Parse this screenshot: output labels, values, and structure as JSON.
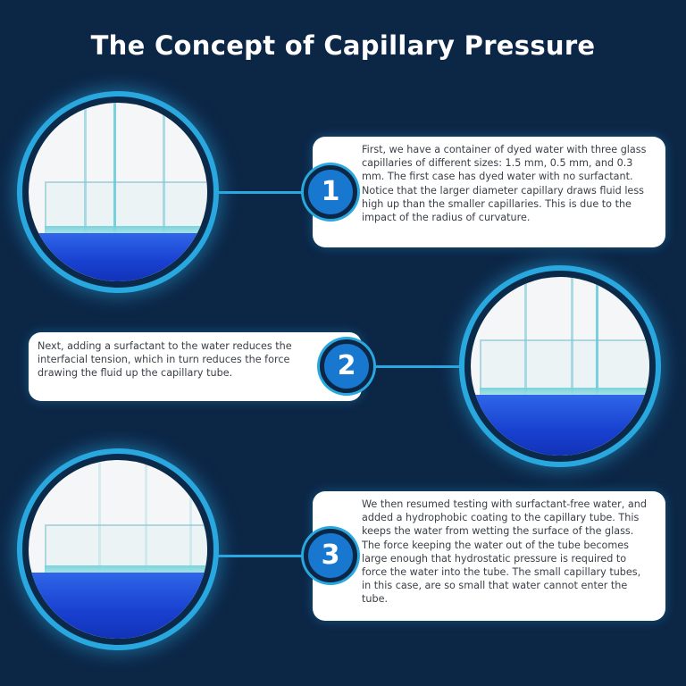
{
  "title": "The Concept of Capillary Pressure",
  "colors": {
    "background": "#0c2646",
    "accent": "#29a8e0",
    "badge": "#1877cf"
  },
  "steps": [
    {
      "number": "1",
      "text": "First, we have a container of dyed water with three glass capillaries of different sizes: 1.5 mm, 0.5 mm, and 0.3 mm. The first case has dyed water with no surfactant. Notice that the larger diameter capillary draws fluid less high up than the smaller capillaries. This is due to the impact of the radius of curvature."
    },
    {
      "number": "2",
      "text": "Next, adding a surfactant to the water reduces the interfacial tension, which in turn reduces the force drawing the fluid up the capillary tube."
    },
    {
      "number": "3",
      "text": "We then resumed testing with surfactant-free water, and added a hydrophobic coating to the capillary tube. This keeps the water from wetting the surface of the glass. The force keeping the water out of the tube becomes large enough that hydrostatic pressure is required to force the water into the tube. The small capillary tubes, in this case, are so small that water cannot enter the tube."
    }
  ]
}
